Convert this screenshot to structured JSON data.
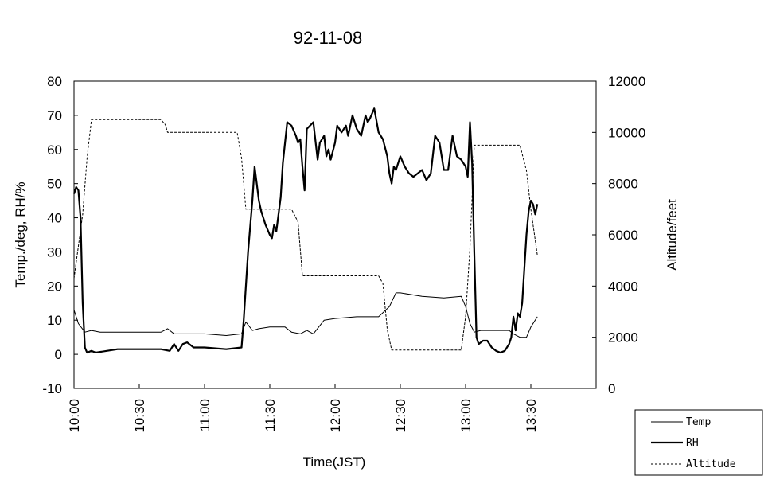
{
  "chart_data": {
    "type": "line",
    "title": "92-11-08",
    "xlabel": "Time(JST)",
    "ylabel_left": "Temp./deg, RH/%",
    "ylabel_right": "Altitude/feet",
    "ylim_left": [
      -10,
      80
    ],
    "ylim_right": [
      0,
      12000
    ],
    "yticks_left": [
      -10,
      0,
      10,
      20,
      30,
      40,
      50,
      60,
      70,
      80
    ],
    "yticks_right": [
      0,
      2000,
      4000,
      6000,
      8000,
      10000,
      12000
    ],
    "xlim": [
      "10:00",
      "14:00"
    ],
    "xticks": [
      "10:00",
      "10:30",
      "11:00",
      "11:30",
      "12:00",
      "12:30",
      "13:00",
      "13:30"
    ],
    "grid": false,
    "legend": {
      "placement": "bottom-right outside",
      "entries": [
        "Temp",
        "RH",
        "Altitude"
      ]
    },
    "series": [
      {
        "name": "Temp",
        "axis": "left",
        "style": "thin-solid",
        "x": [
          "10:00",
          "10:02",
          "10:05",
          "10:08",
          "10:12",
          "10:20",
          "10:30",
          "10:40",
          "10:43",
          "10:46",
          "10:50",
          "11:00",
          "11:10",
          "11:17",
          "11:19",
          "11:22",
          "11:25",
          "11:30",
          "11:37",
          "11:40",
          "11:44",
          "11:47",
          "11:50",
          "11:55",
          "12:00",
          "12:10",
          "12:20",
          "12:25",
          "12:28",
          "12:30",
          "12:40",
          "12:50",
          "12:58",
          "13:00",
          "13:02",
          "13:04",
          "13:07",
          "13:10",
          "13:20",
          "13:22",
          "13:25",
          "13:28",
          "13:30",
          "13:33"
        ],
        "values": [
          13,
          9,
          6.5,
          7,
          6.5,
          6.5,
          6.5,
          6.5,
          7.5,
          6,
          6,
          6,
          5.5,
          6,
          9.5,
          7,
          7.5,
          8,
          8,
          6.5,
          6,
          7,
          6,
          10,
          10.5,
          11,
          11,
          14,
          18,
          18,
          17,
          16.5,
          17,
          14,
          9,
          6.5,
          7,
          7,
          7,
          6,
          5,
          5,
          8,
          11
        ]
      },
      {
        "name": "RH",
        "axis": "left",
        "style": "thick-solid",
        "x": [
          "10:00",
          "10:01",
          "10:02",
          "10:03",
          "10:04",
          "10:05",
          "10:06",
          "10:08",
          "10:10",
          "10:20",
          "10:30",
          "10:40",
          "10:44",
          "10:46",
          "10:48",
          "10:50",
          "10:52",
          "10:55",
          "11:00",
          "11:10",
          "11:17",
          "11:18",
          "11:20",
          "11:22",
          "11:23",
          "11:25",
          "11:26",
          "11:28",
          "11:30",
          "11:31",
          "11:32",
          "11:33",
          "11:35",
          "11:36",
          "11:38",
          "11:40",
          "11:42",
          "11:43",
          "11:44",
          "11:45",
          "11:46",
          "11:47",
          "11:50",
          "11:52",
          "11:53",
          "11:54",
          "11:55",
          "11:56",
          "11:57",
          "11:58",
          "12:00",
          "12:01",
          "12:03",
          "12:05",
          "12:06",
          "12:08",
          "12:10",
          "12:12",
          "12:14",
          "12:15",
          "12:16",
          "12:18",
          "12:20",
          "12:22",
          "12:24",
          "12:25",
          "12:26",
          "12:27",
          "12:28",
          "12:30",
          "12:32",
          "12:34",
          "12:36",
          "12:40",
          "12:42",
          "12:44",
          "12:46",
          "12:48",
          "12:50",
          "12:52",
          "12:54",
          "12:56",
          "12:58",
          "13:00",
          "13:01",
          "13:02",
          "13:03",
          "13:04",
          "13:05",
          "13:06",
          "13:08",
          "13:10",
          "13:12",
          "13:14",
          "13:16",
          "13:18",
          "13:20",
          "13:21",
          "13:22",
          "13:23",
          "13:24",
          "13:25",
          "13:26",
          "13:27",
          "13:28",
          "13:29",
          "13:30",
          "13:31",
          "13:32",
          "13:33"
        ],
        "values": [
          47,
          49,
          48,
          40,
          15,
          2,
          0.5,
          1,
          0.5,
          1.5,
          1.5,
          1.5,
          1,
          3,
          1,
          3,
          3.5,
          2,
          2,
          1.5,
          2,
          10,
          30,
          45,
          55,
          45,
          42,
          38,
          35,
          34,
          38,
          36,
          46,
          56,
          68,
          67,
          64,
          62,
          63,
          55,
          48,
          66,
          68,
          57,
          62,
          63,
          64,
          58,
          60,
          57,
          62,
          67,
          65,
          67,
          64,
          70,
          66,
          64,
          70,
          68,
          69,
          72,
          65,
          63,
          58,
          53,
          50,
          55,
          54,
          58,
          55,
          53,
          52,
          54,
          51,
          53,
          64,
          62,
          54,
          54,
          64,
          58,
          57,
          55,
          52,
          68,
          56,
          30,
          5,
          3,
          4,
          4,
          2,
          1,
          0.5,
          1,
          3,
          5,
          11,
          7,
          12,
          11,
          15,
          25,
          35,
          42,
          45,
          44,
          41,
          44
        ]
      },
      {
        "name": "Altitude",
        "axis": "right",
        "style": "dashed",
        "x": [
          "10:00",
          "10:04",
          "10:06",
          "10:08",
          "10:10",
          "10:20",
          "10:30",
          "10:40",
          "10:42",
          "10:43",
          "11:00",
          "11:10",
          "11:15",
          "11:17",
          "11:19",
          "11:30",
          "11:40",
          "11:43",
          "11:45",
          "11:50",
          "12:00",
          "12:10",
          "12:20",
          "12:22",
          "12:24",
          "12:26",
          "12:28",
          "12:30",
          "12:40",
          "12:50",
          "12:58",
          "13:00",
          "13:02",
          "13:04",
          "13:06",
          "13:10",
          "13:20",
          "13:25",
          "13:28",
          "13:30",
          "13:33"
        ],
        "values": [
          4300,
          6800,
          9000,
          10500,
          10500,
          10500,
          10500,
          10500,
          10300,
          10000,
          10000,
          10000,
          10000,
          9000,
          7000,
          7000,
          7000,
          6500,
          4400,
          4400,
          4400,
          4400,
          4400,
          4100,
          2300,
          1500,
          1500,
          1500,
          1500,
          1500,
          1500,
          2800,
          5500,
          9500,
          9500,
          9500,
          9500,
          9500,
          8500,
          7000,
          5200
        ]
      }
    ]
  }
}
